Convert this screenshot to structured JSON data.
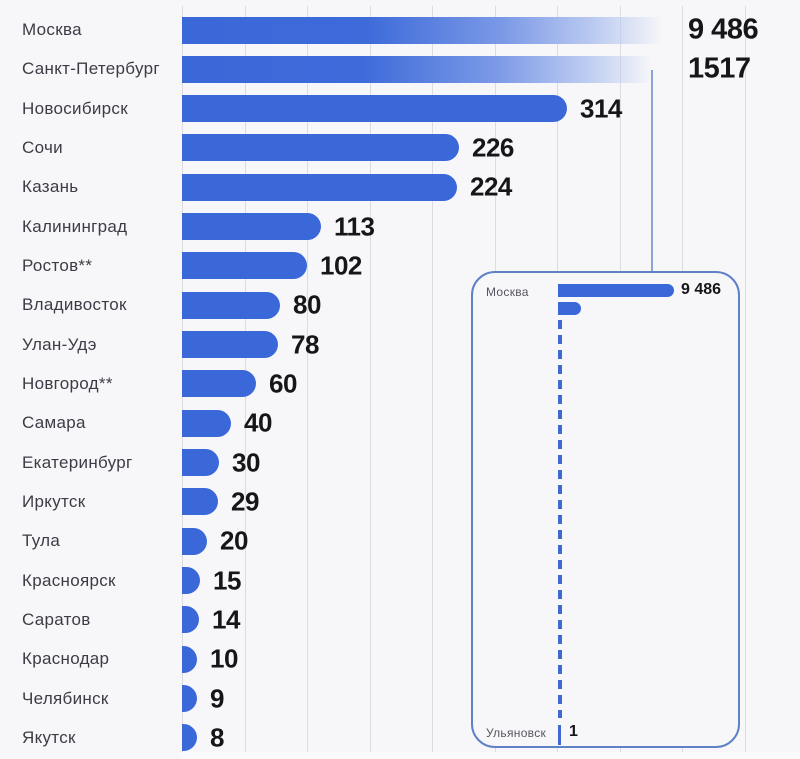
{
  "colors": {
    "bar": "#3a68d8",
    "background": "#f7f7f9",
    "gridline": "#dcdce0",
    "label": "#3c3c46",
    "value": "#15151a",
    "inset_border": "#5f82c6",
    "dashed": "#3f6ad4",
    "leader": "#8ba3d6"
  },
  "chart_data": {
    "type": "bar",
    "orientation": "horizontal",
    "title": "",
    "xlabel": "",
    "ylabel": "",
    "grid": true,
    "x_axis_tick_labels_visible": false,
    "categories": [
      "Москва",
      "Санкт-Петербург",
      "Новосибирск",
      "Сочи",
      "Казань",
      "Калининград",
      "Ростов**",
      "Владивосток",
      "Улан-Удэ",
      "Новгород**",
      "Самара",
      "Екатеринбург",
      "Иркутск",
      "Тула",
      "Красноярск",
      "Саратов",
      "Краснодар",
      "Челябинск",
      "Якутск"
    ],
    "values": [
      9486,
      1517,
      314,
      226,
      224,
      113,
      102,
      80,
      78,
      60,
      40,
      30,
      29,
      20,
      15,
      14,
      10,
      9,
      8
    ],
    "value_labels": [
      "9 486",
      "1517",
      "314",
      "226",
      "224",
      "113",
      "102",
      "80",
      "78",
      "60",
      "40",
      "30",
      "29",
      "20",
      "15",
      "14",
      "10",
      "9",
      "8"
    ],
    "overflow_truncated": [
      "Москва",
      "Санкт-Петербург"
    ],
    "xlim_displayed": [
      0,
      512
    ],
    "inset": {
      "purpose": "same data at true proportional scale",
      "rows_shown": [
        {
          "label": "Москва",
          "value": 9486,
          "value_label": "9 486"
        },
        {
          "label": "",
          "value": 1517,
          "value_label": ""
        },
        {
          "label": "Ульяновск",
          "value": 1,
          "value_label": "1"
        }
      ],
      "dashed_axis": true
    }
  }
}
